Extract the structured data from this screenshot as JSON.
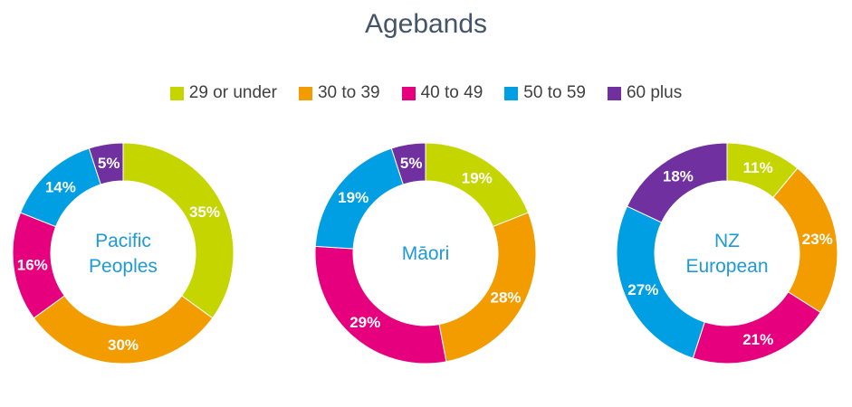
{
  "title": "Agebands",
  "colors": {
    "29 or under": "#c5d500",
    "30 to 39": "#f39c00",
    "40 to 49": "#e6007e",
    "50 to 59": "#009fe3",
    "60 plus": "#7030a0"
  },
  "chart_data": [
    {
      "type": "pie",
      "style": "donut",
      "center_label": [
        "Pacific",
        "Peoples"
      ],
      "categories": [
        "29 or under",
        "30 to 39",
        "40 to 49",
        "50 to 59",
        "60 plus"
      ],
      "values": [
        35,
        30,
        16,
        14,
        5
      ],
      "value_labels": [
        "35%",
        "30%",
        "16%",
        "14%",
        "5%"
      ]
    },
    {
      "type": "pie",
      "style": "donut",
      "center_label": [
        "Māori"
      ],
      "categories": [
        "29 or under",
        "30 to 39",
        "40 to 49",
        "50 to 59",
        "60 plus"
      ],
      "values": [
        19,
        28,
        29,
        19,
        5
      ],
      "value_labels": [
        "19%",
        "28%",
        "29%",
        "19%",
        "5%"
      ]
    },
    {
      "type": "pie",
      "style": "donut",
      "center_label": [
        "NZ",
        "European"
      ],
      "categories": [
        "29 or under",
        "30 to 39",
        "40 to 49",
        "50 to 59",
        "60 plus"
      ],
      "values": [
        11,
        23,
        21,
        27,
        18
      ],
      "value_labels": [
        "11%",
        "23%",
        "21%",
        "27%",
        "18%"
      ]
    }
  ],
  "legend": [
    "29 or under",
    "30 to 39",
    "40 to 49",
    "50 to 59",
    "60 plus"
  ],
  "legend_position": "top"
}
